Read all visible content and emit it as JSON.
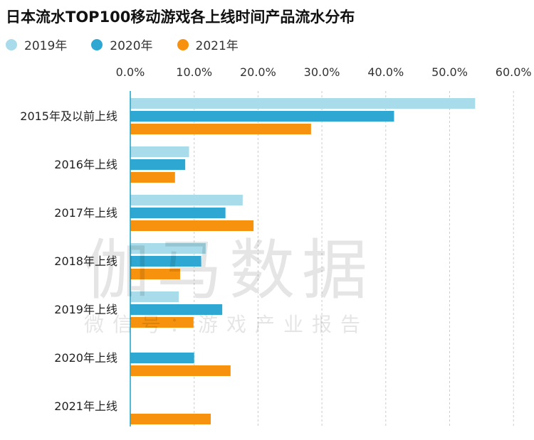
{
  "chart_data": {
    "type": "bar",
    "orientation": "horizontal",
    "title": "日本流水TOP100移动游戏各上线时间产品流水分布",
    "categories": [
      "2015年及以前上线",
      "2016年上线",
      "2017年上线",
      "2018年上线",
      "2019年上线",
      "2020年上线",
      "2021年上线"
    ],
    "series": [
      {
        "name": "2019年",
        "color": "#a8dcea",
        "values": [
          54.0,
          9.2,
          17.6,
          11.8,
          7.6,
          0,
          0
        ]
      },
      {
        "name": "2020年",
        "color": "#2ea8d2",
        "values": [
          41.3,
          8.6,
          14.9,
          11.1,
          14.4,
          10.0,
          0
        ]
      },
      {
        "name": "2021年",
        "color": "#f7920e",
        "values": [
          28.3,
          7.0,
          19.3,
          7.8,
          9.9,
          15.7,
          12.6
        ]
      }
    ],
    "x_ticks": [
      "0.0%",
      "10.0%",
      "20.0%",
      "30.0%",
      "40.0%",
      "50.0%",
      "60.0%"
    ],
    "xlim": [
      0,
      60
    ],
    "legend_position": "top-left",
    "grid": "vertical dashed"
  },
  "watermark": {
    "line1": "伽马数据",
    "line2": "微信号：游戏产业报告"
  }
}
